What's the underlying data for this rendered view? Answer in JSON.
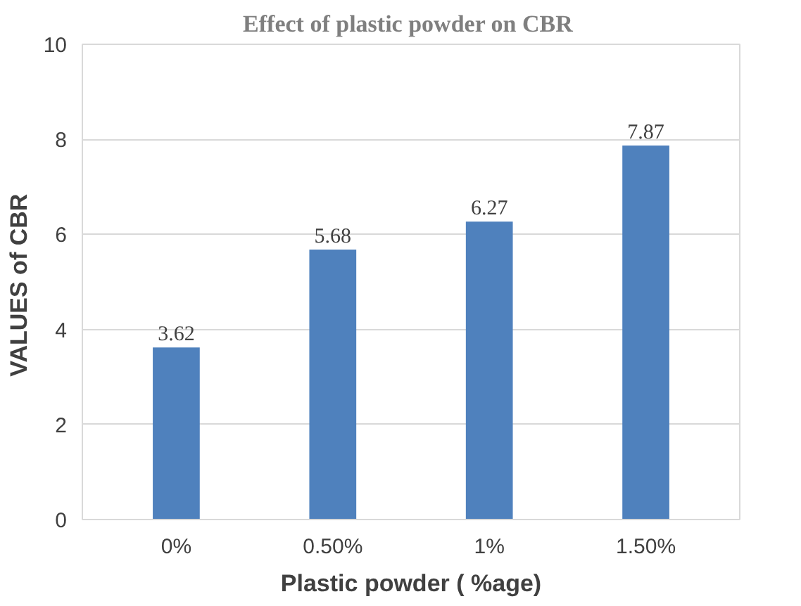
{
  "chart_data": {
    "type": "bar",
    "title": "Effect of plastic powder on  CBR",
    "xlabel": "Plastic powder ( %age)",
    "ylabel": "VALUES of  CBR",
    "categories": [
      "0%",
      "0.50%",
      "1%",
      "1.50%"
    ],
    "values": [
      3.62,
      5.68,
      6.27,
      7.87
    ],
    "color": "#4f81bd",
    "ylim": [
      0,
      10
    ],
    "yticks": [
      0,
      2,
      4,
      6,
      8,
      10
    ],
    "grid": "y",
    "data_labels": true
  }
}
